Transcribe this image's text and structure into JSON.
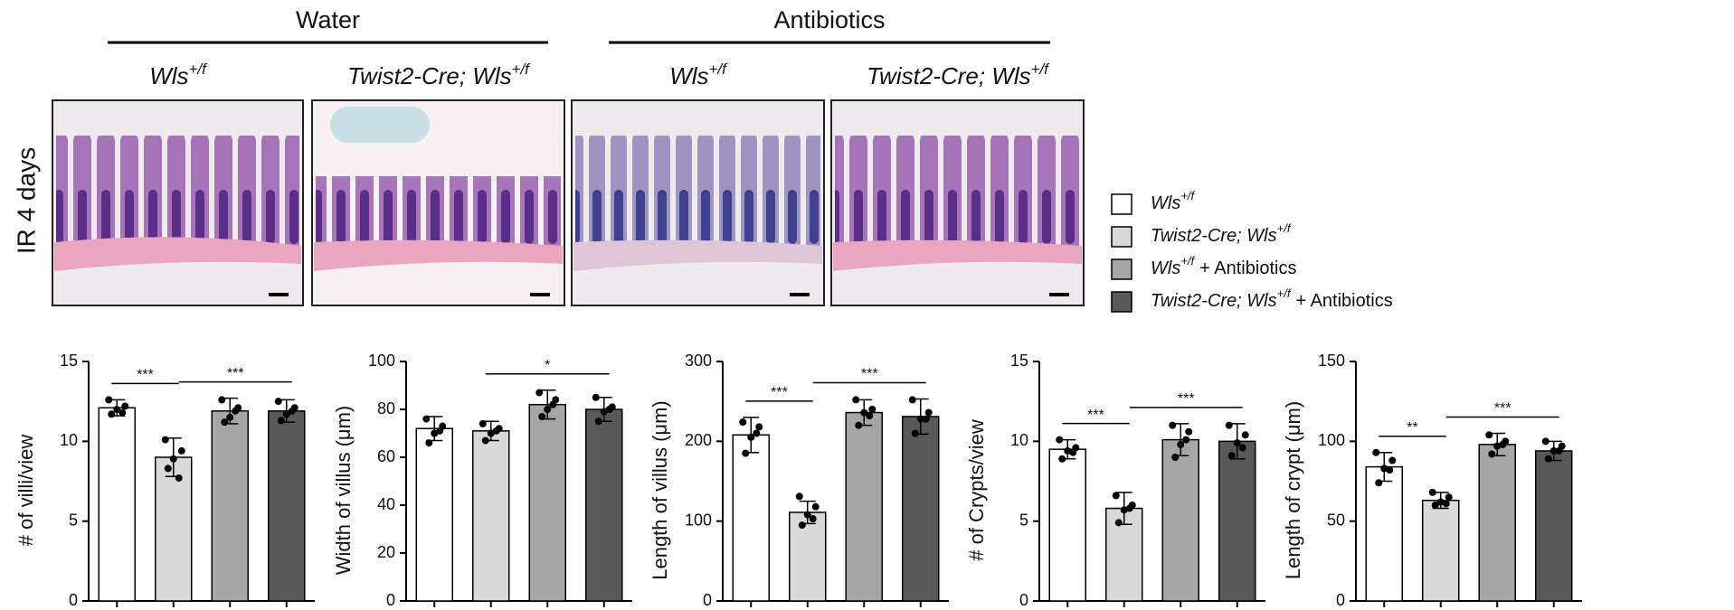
{
  "panels": {
    "groups": [
      {
        "title": "Water"
      },
      {
        "title": "Antibiotics"
      }
    ],
    "columns": [
      {
        "main": "Wls",
        "sup": "+/f"
      },
      {
        "main": "Twist2-Cre; Wls",
        "sup": "+/f"
      },
      {
        "main": "Wls",
        "sup": "+/f"
      },
      {
        "main": "Twist2-Cre; Wls",
        "sup": "+/f"
      }
    ],
    "row_label": "IR 4 days"
  },
  "legend": [
    {
      "main": "Wls",
      "sup": "+/f",
      "color": "#ffffff"
    },
    {
      "main": "Twist2-Cre; Wls",
      "sup": "+/f",
      "color": "#d9d9d9"
    },
    {
      "main": "Wls",
      "sup": "+/f",
      "suffix": "+ Antibiotics",
      "color": "#a6a6a6"
    },
    {
      "main": "Twist2-Cre; Wls",
      "sup": "+/f",
      "suffix": "+ Antibiotics",
      "color": "#595959"
    }
  ],
  "chart_data": [
    {
      "type": "bar",
      "ylabel": "# of villi/view",
      "categories": [
        null,
        null,
        null,
        null
      ],
      "values": [
        12.1,
        9.0,
        11.9,
        11.9
      ],
      "errors": [
        0.5,
        1.2,
        0.8,
        0.7
      ],
      "points": [
        [
          12.6,
          12.2,
          12.0,
          11.7,
          11.8
        ],
        [
          10.1,
          9.4,
          8.9,
          8.3,
          7.7
        ],
        [
          12.6,
          12.1,
          11.5,
          11.2,
          11.9
        ],
        [
          12.5,
          12.1,
          11.7,
          11.3,
          11.9
        ]
      ],
      "colors": [
        "#ffffff",
        "#d9d9d9",
        "#a6a6a6",
        "#595959"
      ],
      "ylim": [
        0,
        15
      ],
      "yticks": [
        0,
        5,
        10,
        15
      ],
      "significance": [
        {
          "from": 0,
          "to": 1,
          "label": "***"
        },
        {
          "from": 1,
          "to": 3,
          "label": "***"
        }
      ]
    },
    {
      "type": "bar",
      "ylabel": "Width of villus (μm)",
      "categories": [
        null,
        null,
        null,
        null
      ],
      "values": [
        72,
        71,
        82,
        80
      ],
      "errors": [
        5,
        4,
        6,
        5
      ],
      "points": [
        [
          76,
          73,
          70,
          66,
          71
        ],
        [
          74,
          72,
          70,
          67,
          71
        ],
        [
          87,
          84,
          80,
          77,
          82
        ],
        [
          85,
          81,
          79,
          75,
          80
        ]
      ],
      "colors": [
        "#ffffff",
        "#d9d9d9",
        "#a6a6a6",
        "#595959"
      ],
      "ylim": [
        0,
        100
      ],
      "yticks": [
        0,
        20,
        40,
        60,
        80,
        100
      ],
      "significance": [
        {
          "from": 1,
          "to": 3,
          "label": "*"
        }
      ]
    },
    {
      "type": "bar",
      "ylabel": "Length of villus (μm)",
      "categories": [
        null,
        null,
        null,
        null
      ],
      "values": [
        208,
        111,
        236,
        231
      ],
      "errors": [
        22,
        14,
        16,
        22
      ],
      "points": [
        [
          224,
          218,
          205,
          185,
          210
        ],
        [
          131,
          118,
          108,
          95,
          103
        ],
        [
          252,
          240,
          236,
          220,
          232
        ],
        [
          252,
          236,
          228,
          210,
          228
        ]
      ],
      "colors": [
        "#ffffff",
        "#d9d9d9",
        "#a6a6a6",
        "#595959"
      ],
      "ylim": [
        0,
        300
      ],
      "yticks": [
        0,
        100,
        200,
        300
      ],
      "significance": [
        {
          "from": 0,
          "to": 1,
          "label": "***"
        },
        {
          "from": 1,
          "to": 3,
          "label": "***"
        }
      ]
    },
    {
      "type": "bar",
      "ylabel": "# of Crypts/view",
      "categories": [
        null,
        null,
        null,
        null
      ],
      "values": [
        9.5,
        5.8,
        10.1,
        10.0
      ],
      "errors": [
        0.6,
        1.0,
        1.0,
        1.1
      ],
      "points": [
        [
          10.1,
          9.6,
          9.4,
          8.9,
          9.3
        ],
        [
          6.6,
          6.0,
          5.7,
          4.9,
          5.8
        ],
        [
          11.0,
          10.6,
          9.8,
          9.0,
          10.1
        ],
        [
          11.0,
          10.4,
          9.9,
          9.1,
          9.6
        ]
      ],
      "colors": [
        "#ffffff",
        "#d9d9d9",
        "#a6a6a6",
        "#595959"
      ],
      "ylim": [
        0,
        15
      ],
      "yticks": [
        0,
        5,
        10,
        15
      ],
      "significance": [
        {
          "from": 0,
          "to": 1,
          "label": "***"
        },
        {
          "from": 1,
          "to": 3,
          "label": "***"
        }
      ]
    },
    {
      "type": "bar",
      "ylabel": "Length of crypt (μm)",
      "categories": [
        null,
        null,
        null,
        null
      ],
      "values": [
        84,
        63,
        98,
        94
      ],
      "errors": [
        9,
        5,
        7,
        6
      ],
      "points": [
        [
          93,
          88,
          83,
          74,
          82
        ],
        [
          68,
          65,
          62,
          60,
          61
        ],
        [
          104,
          100,
          97,
          92,
          98
        ],
        [
          100,
          97,
          94,
          89,
          94
        ]
      ],
      "colors": [
        "#ffffff",
        "#d9d9d9",
        "#a6a6a6",
        "#595959"
      ],
      "ylim": [
        0,
        150
      ],
      "yticks": [
        0,
        50,
        100,
        150
      ],
      "significance": [
        {
          "from": 0,
          "to": 1,
          "label": "**"
        },
        {
          "from": 1,
          "to": 3,
          "label": "***"
        }
      ]
    }
  ]
}
